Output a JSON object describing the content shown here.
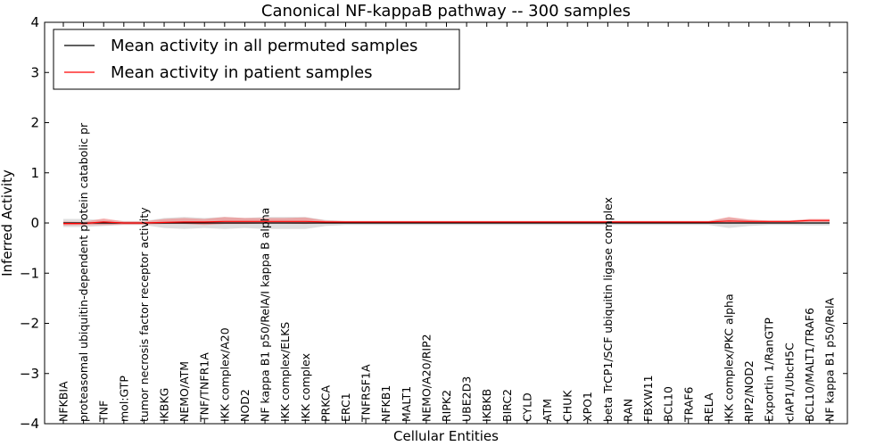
{
  "chart_data": {
    "type": "line",
    "title": "Canonical NF-kappaB pathway -- 300 samples",
    "xlabel": "Cellular Entities",
    "ylabel": "Inferred Activity",
    "ylim": [
      -4,
      4
    ],
    "yticks": [
      "−4",
      "−3",
      "−2",
      "−1",
      "0",
      "1",
      "2",
      "3",
      "4"
    ],
    "ytick_values": [
      -4,
      -3,
      -2,
      -1,
      0,
      1,
      2,
      3,
      4
    ],
    "legend": {
      "placement": "top-left"
    },
    "categories": [
      "NFKBIA",
      "proteasomal ubiquitin-dependent protein catabolic pr",
      "TNF",
      "mol:GTP",
      "tumor necrosis factor receptor activity",
      "IKBKG",
      "NEMO/ATM",
      "TNF/TNFR1A",
      "IKK complex/A20",
      "NOD2",
      "NF kappa B1 p50/RelA/I kappa B alpha",
      "IKK complex/ELKS",
      "IKK complex",
      "PRKCA",
      "ERC1",
      "TNFRSF1A",
      "NFKB1",
      "MALT1",
      "NEMO/A20/RIP2",
      "RIPK2",
      "UBE2D3",
      "IKBKB",
      "BIRC2",
      "CYLD",
      "ATM",
      "CHUK",
      "XPO1",
      "beta TrCP1/SCF ubiquitin ligase complex",
      "RAN",
      "FBXW11",
      "BCL10",
      "TRAF6",
      "RELA",
      "IKK complex/PKC alpha",
      "RIP2/NOD2",
      "Exportin 1/RanGTP",
      "cIAP1/UbcH5C",
      "BCL10/MALT1/TRAF6",
      "NF kappa B1 p50/RelA"
    ],
    "series": [
      {
        "name": "Mean activity in all permuted samples",
        "color": "#000000",
        "band_color": "#c8c8c8",
        "values": [
          0,
          0,
          0,
          0,
          0,
          0,
          0,
          0,
          0,
          0,
          0,
          0,
          0,
          0,
          0,
          0,
          0,
          0,
          0,
          0,
          0,
          0,
          0,
          0,
          0,
          0,
          0,
          0,
          0,
          0,
          0,
          0,
          0,
          0,
          0,
          0,
          0,
          0,
          0
        ],
        "band": [
          0.08,
          0.08,
          0.06,
          0.04,
          0.04,
          0.1,
          0.12,
          0.1,
          0.12,
          0.1,
          0.12,
          0.12,
          0.12,
          0.06,
          0.04,
          0.04,
          0.04,
          0.04,
          0.04,
          0.04,
          0.04,
          0.04,
          0.04,
          0.04,
          0.04,
          0.04,
          0.04,
          0.04,
          0.04,
          0.04,
          0.04,
          0.04,
          0.04,
          0.1,
          0.06,
          0.04,
          0.04,
          0.05,
          0.05
        ]
      },
      {
        "name": "Mean activity in patient samples",
        "color": "#ff0000",
        "band_color": "#f08080",
        "values": [
          -0.01,
          -0.01,
          0.02,
          0,
          0,
          0.01,
          0.02,
          0.02,
          0.03,
          0.03,
          0.03,
          0.03,
          0.03,
          0.02,
          0.02,
          0.02,
          0.02,
          0.02,
          0.02,
          0.02,
          0.02,
          0.02,
          0.02,
          0.02,
          0.02,
          0.02,
          0.02,
          0.02,
          0.02,
          0.02,
          0.02,
          0.02,
          0.02,
          0.04,
          0.03,
          0.03,
          0.03,
          0.05,
          0.05
        ],
        "upper": [
          0.03,
          0.02,
          0.09,
          0.03,
          0.03,
          0.08,
          0.1,
          0.08,
          0.12,
          0.1,
          0.1,
          0.1,
          0.11,
          0.05,
          0.04,
          0.04,
          0.04,
          0.04,
          0.04,
          0.04,
          0.04,
          0.04,
          0.04,
          0.04,
          0.04,
          0.04,
          0.04,
          0.04,
          0.04,
          0.04,
          0.04,
          0.04,
          0.04,
          0.12,
          0.07,
          0.05,
          0.05,
          0.08,
          0.08
        ],
        "lower": [
          -0.05,
          -0.04,
          -0.04,
          -0.03,
          -0.03,
          -0.02,
          -0.02,
          -0.04,
          -0.02,
          -0.02,
          -0.01,
          -0.01,
          -0.02,
          0,
          0,
          0,
          0,
          0,
          0,
          0,
          0,
          0,
          0,
          0,
          0,
          0,
          0,
          0,
          0,
          0,
          0,
          0,
          0,
          -0.01,
          0,
          0.01,
          0.01,
          0.02,
          0.02
        ]
      }
    ]
  }
}
